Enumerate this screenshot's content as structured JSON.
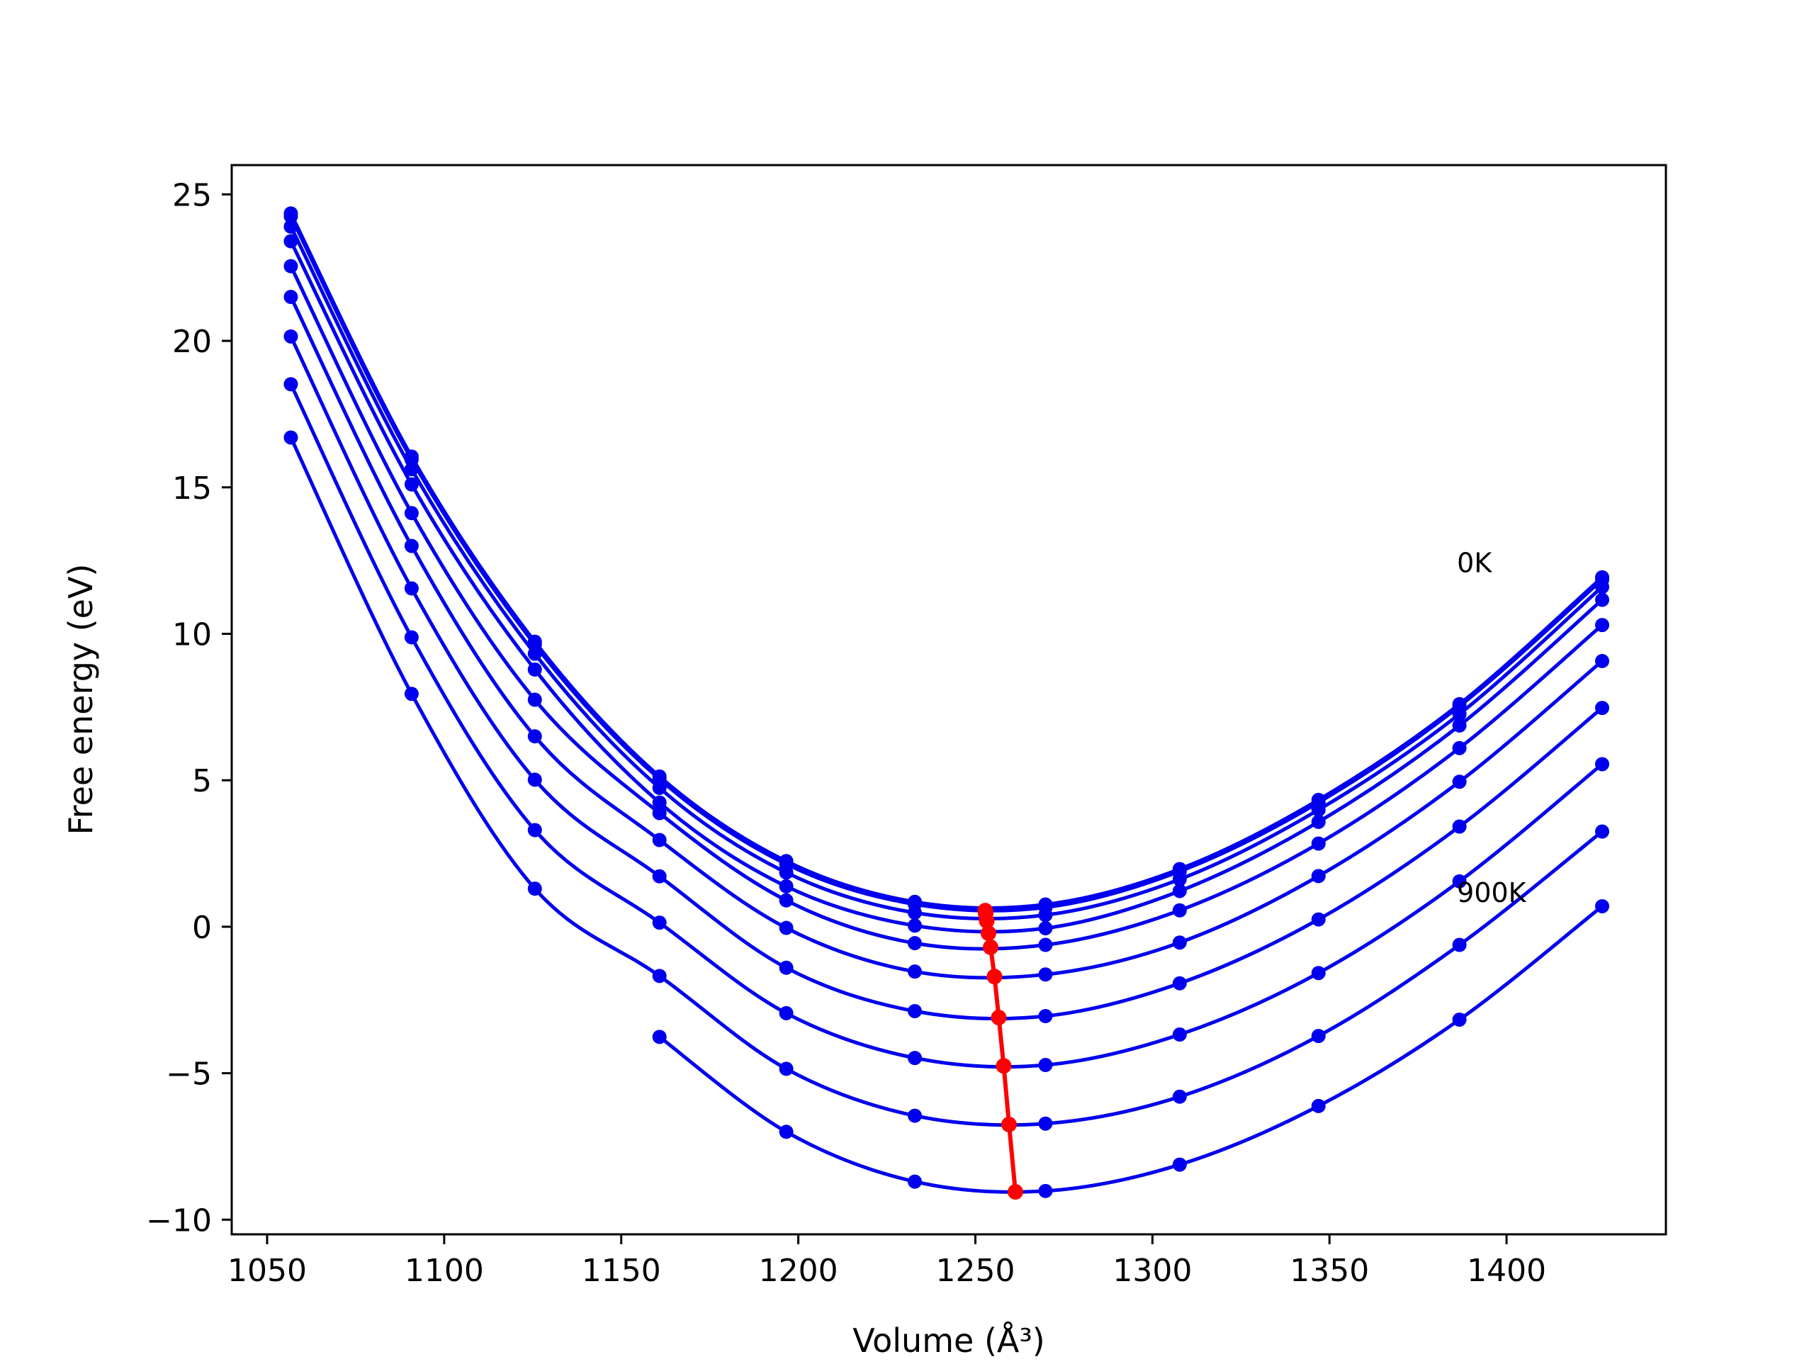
{
  "chart_data": {
    "type": "line",
    "title": "",
    "xlabel": "Volume (Å³)",
    "ylabel": "Free energy (eV)",
    "xlim": [
      1040,
      1445
    ],
    "ylim": [
      -10.5,
      26
    ],
    "xticks": [
      1050,
      1100,
      1150,
      1200,
      1250,
      1300,
      1350,
      1400
    ],
    "yticks": [
      -10,
      -5,
      0,
      5,
      10,
      15,
      20,
      25
    ],
    "ytick_labels": [
      "−10",
      "−5",
      "0",
      "5",
      "10",
      "15",
      "20",
      "25"
    ],
    "grid": false,
    "legend": "none",
    "colors": {
      "curves": "#0000ee",
      "minima": "#ff0000"
    },
    "volumes": [
      1056.7,
      1090.8,
      1125.6,
      1160.8,
      1196.6,
      1232.9,
      1269.8,
      1307.7,
      1346.9,
      1386.7,
      1427.0
    ],
    "series": [
      {
        "values": [
          24.35,
          16.05,
          9.73,
          5.13,
          2.24,
          0.85,
          0.76,
          1.97,
          4.33,
          7.6,
          11.93
        ]
      },
      {
        "values": [
          24.25,
          15.95,
          9.63,
          5.04,
          2.14,
          0.77,
          0.66,
          1.89,
          4.24,
          7.53,
          11.85
        ]
      },
      {
        "values": [
          23.9,
          15.62,
          9.32,
          4.74,
          1.85,
          0.48,
          0.4,
          1.62,
          3.99,
          7.26,
          11.6
        ]
      },
      {
        "values": [
          23.4,
          15.1,
          8.78,
          4.24,
          1.38,
          0.04,
          -0.05,
          1.22,
          3.58,
          6.87,
          11.16
        ]
      },
      {
        "values": [
          22.55,
          14.12,
          7.75,
          3.88,
          0.9,
          -0.56,
          -0.62,
          0.56,
          2.84,
          6.1,
          10.3
        ]
      },
      {
        "values": [
          21.5,
          13.0,
          6.5,
          2.96,
          -0.04,
          -1.53,
          -1.63,
          -0.54,
          1.73,
          4.95,
          9.07
        ]
      },
      {
        "values": [
          20.15,
          11.55,
          5.02,
          1.72,
          -1.4,
          -2.88,
          -3.05,
          -1.93,
          0.25,
          3.42,
          7.47
        ]
      },
      {
        "values": [
          18.52,
          9.88,
          3.3,
          0.14,
          -2.95,
          -4.48,
          -4.72,
          -3.68,
          -1.58,
          1.55,
          5.55
        ]
      },
      {
        "values": [
          16.7,
          7.95,
          1.3,
          -1.68,
          -4.85,
          -6.45,
          -6.72,
          -5.8,
          -3.73,
          -0.62,
          3.25
        ]
      },
      {
        "values": [
          null,
          null,
          null,
          -3.76,
          -7.0,
          -8.7,
          -9.02,
          -8.12,
          -6.12,
          -3.17,
          0.7
        ]
      }
    ],
    "minima": {
      "x": [
        1252.8,
        1252.9,
        1253.2,
        1253.7,
        1254.3,
        1255.4,
        1256.6,
        1258.0,
        1259.5,
        1261.3
      ],
      "y": [
        0.55,
        0.46,
        0.2,
        -0.22,
        -0.7,
        -1.7,
        -3.1,
        -4.75,
        -6.75,
        -9.05
      ]
    },
    "annotations": [
      {
        "text": "0K",
        "x": 1386,
        "y": 12.1
      },
      {
        "text": "900K",
        "x": 1386,
        "y": 0.85
      }
    ]
  }
}
